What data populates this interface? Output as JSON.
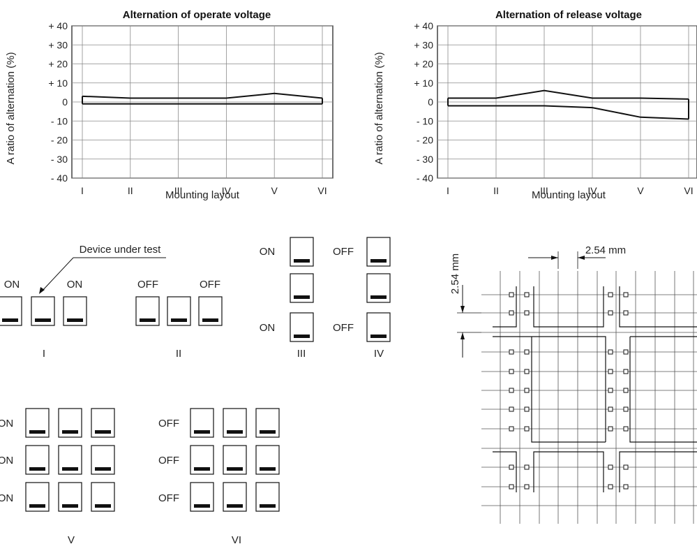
{
  "chart_data": [
    {
      "type": "line",
      "title": "Alternation of operate voltage",
      "xlabel": "Mounting layout",
      "ylabel": "A ratio of alternation (%)",
      "categories": [
        "I",
        "II",
        "III",
        "IV",
        "V",
        "VI"
      ],
      "y_ticks": [
        "+ 40",
        "+ 30",
        "+ 20",
        "+ 10",
        "0",
        "- 10",
        "- 20",
        "- 30",
        "- 40"
      ],
      "ylim": [
        -40,
        40
      ],
      "series": [
        {
          "values": [
            3,
            2,
            2,
            2,
            4.5,
            2
          ]
        },
        {
          "values": [
            -1,
            -1,
            -1,
            -1,
            -1,
            -1
          ]
        }
      ]
    },
    {
      "type": "line",
      "title": "Alternation of release voltage",
      "xlabel": "Mounting layout",
      "ylabel": "A ratio of alternation (%)",
      "categories": [
        "I",
        "II",
        "III",
        "IV",
        "V",
        "VI"
      ],
      "y_ticks": [
        "+ 40",
        "+ 30",
        "+ 20",
        "+ 10",
        "0",
        "- 10",
        "- 20",
        "- 30",
        "- 40"
      ],
      "ylim": [
        -40,
        40
      ],
      "series": [
        {
          "values": [
            2,
            2,
            6,
            2,
            2,
            1.5
          ]
        },
        {
          "values": [
            -2,
            -2,
            -2,
            -3,
            -8,
            -9
          ]
        }
      ]
    }
  ],
  "layouts": {
    "device_under_test": "Device under test",
    "I": {
      "labels": [
        "ON",
        "ON"
      ],
      "roman": "I"
    },
    "II": {
      "labels": [
        "OFF",
        "OFF"
      ],
      "roman": "II"
    },
    "III": {
      "labels": [
        "ON",
        "ON"
      ],
      "roman": "III"
    },
    "IV": {
      "labels": [
        "OFF",
        "OFF"
      ],
      "roman": "IV"
    },
    "V": {
      "labels": [
        "ON",
        "ON",
        "ON"
      ],
      "roman": "V"
    },
    "VI": {
      "labels": [
        "OFF",
        "OFF",
        "OFF"
      ],
      "roman": "VI"
    }
  },
  "pcb": {
    "pitch_h": "2.54 mm",
    "pitch_v": "2.54 mm"
  }
}
